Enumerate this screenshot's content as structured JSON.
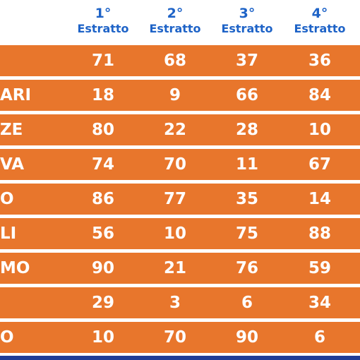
{
  "header": {
    "columns": [
      {
        "num": "1°",
        "label": "Estratto"
      },
      {
        "num": "2°",
        "label": "Estratto"
      },
      {
        "num": "3°",
        "label": "Estratto"
      },
      {
        "num": "4°",
        "label": "Estratto"
      }
    ]
  },
  "rows": [
    {
      "city": "",
      "values": [
        "71",
        "68",
        "37",
        "36"
      ]
    },
    {
      "city": "ARI",
      "values": [
        "18",
        "9",
        "66",
        "84"
      ]
    },
    {
      "city": "ZE",
      "values": [
        "80",
        "22",
        "28",
        "10"
      ]
    },
    {
      "city": "VA",
      "values": [
        "74",
        "70",
        "11",
        "67"
      ]
    },
    {
      "city": "O",
      "values": [
        "86",
        "77",
        "35",
        "14"
      ]
    },
    {
      "city": "LI",
      "values": [
        "56",
        "10",
        "75",
        "88"
      ]
    },
    {
      "city": "MO",
      "values": [
        "90",
        "21",
        "76",
        "59"
      ]
    },
    {
      "city": "",
      "values": [
        "29",
        "3",
        "6",
        "34"
      ]
    },
    {
      "city": "O",
      "values": [
        "10",
        "70",
        "90",
        "6"
      ]
    }
  ],
  "colors": {
    "row_bg": "#e8762c",
    "header_text": "#1e63c7",
    "footer_bar": "#1f3d96"
  }
}
